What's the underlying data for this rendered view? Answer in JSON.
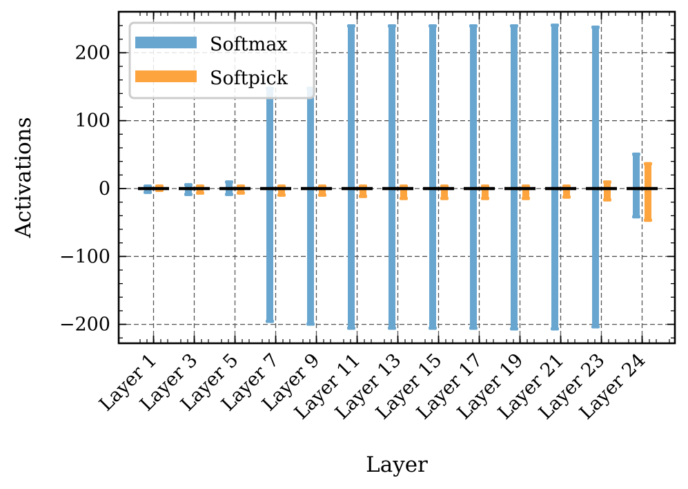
{
  "chart_data": {
    "type": "range-bar",
    "title": "",
    "xlabel": "Layer",
    "ylabel": "Activations",
    "ylim": [
      -230,
      262
    ],
    "yticks": [
      -200,
      -100,
      0,
      100,
      200
    ],
    "ytick_labels": [
      "−200",
      "−100",
      "0",
      "100",
      "200"
    ],
    "grid": true,
    "legend_position": "top-left",
    "categories": [
      "Layer 1",
      "Layer 3",
      "Layer 5",
      "Layer 7",
      "Layer 9",
      "Layer 11",
      "Layer 13",
      "Layer 15",
      "Layer 17",
      "Layer 19",
      "Layer 21",
      "Layer 23",
      "Layer 24"
    ],
    "series": [
      {
        "name": "Softmax",
        "color": "#68a6d0",
        "min": [
          -6,
          -9,
          -9,
          -196,
          -200,
          -206,
          -206,
          -206,
          -206,
          -207,
          -207,
          -204,
          -42
        ],
        "max": [
          4,
          6,
          10,
          148,
          148,
          240,
          240,
          240,
          240,
          240,
          241,
          238,
          51
        ],
        "center": [
          0,
          0,
          0,
          0,
          0,
          0,
          0,
          0,
          0,
          0,
          0,
          0,
          0
        ]
      },
      {
        "name": "Softpick",
        "color": "#fda43e",
        "min": [
          -3,
          -7,
          -7,
          -10,
          -10,
          -12,
          -15,
          -15,
          -15,
          -15,
          -13,
          -17,
          -47
        ],
        "max": [
          4,
          4,
          4,
          4,
          4,
          4,
          4,
          4,
          4,
          4,
          4,
          10,
          37
        ],
        "center": [
          0,
          0,
          0,
          0,
          0,
          0,
          0,
          0,
          0,
          0,
          0,
          0,
          0
        ]
      }
    ],
    "center_marker_color": "#000000"
  }
}
